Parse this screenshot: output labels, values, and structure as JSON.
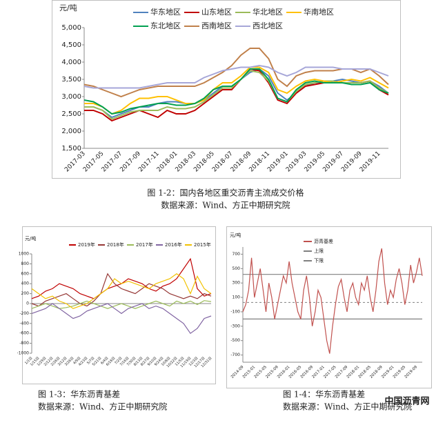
{
  "chart_data": [
    {
      "type": "line",
      "ylabel": "元/吨",
      "categories": [
        "2017-03",
        null,
        "2017-05",
        null,
        "2017-07",
        null,
        "2017-09",
        null,
        "2017-11",
        null,
        "2018-01",
        null,
        "2018-03",
        null,
        "2018-05",
        null,
        "2018-07",
        null,
        "2018-09",
        null,
        "2018-11",
        null,
        "2019-01",
        null,
        "2019-03",
        null,
        "2019-05",
        null,
        "2019-07",
        null,
        "2019-09",
        null,
        "2019-11",
        null
      ],
      "ylim": [
        1500,
        5000
      ],
      "yticks": [
        {
          "value": 1500,
          "label": "1,500"
        },
        {
          "value": 2000,
          "label": "2,000"
        },
        {
          "value": 2500,
          "label": "2,500"
        },
        {
          "value": 3000,
          "label": "3,000"
        },
        {
          "value": 3500,
          "label": "3,500"
        },
        {
          "value": 4000,
          "label": "4,000"
        },
        {
          "value": 4500,
          "label": "4,500"
        },
        {
          "value": 5000,
          "label": "5,000"
        }
      ],
      "series": [
        {
          "name": "华东地区",
          "color": "#4f81bd",
          "values": [
            2700,
            2700,
            2600,
            2400,
            2500,
            2600,
            2700,
            2700,
            2800,
            2850,
            2850,
            2800,
            2800,
            2900,
            3100,
            3300,
            3300,
            3500,
            3700,
            3800,
            3600,
            3100,
            2900,
            3100,
            3300,
            3400,
            3400,
            3450,
            3500,
            3450,
            3400,
            3450,
            3300,
            3100
          ]
        },
        {
          "name": "山东地区",
          "color": "#c00000",
          "values": [
            2600,
            2600,
            2500,
            2300,
            2400,
            2500,
            2600,
            2500,
            2400,
            2600,
            2500,
            2500,
            2600,
            2800,
            3000,
            3200,
            3200,
            3500,
            3800,
            3750,
            3400,
            2900,
            2800,
            3100,
            3300,
            3350,
            3400,
            3450,
            3400,
            3400,
            3400,
            3450,
            3200,
            3050
          ]
        },
        {
          "name": "华北地区",
          "color": "#9bbb59",
          "values": [
            2700,
            2700,
            2600,
            2350,
            2450,
            2550,
            2600,
            2600,
            2600,
            2700,
            2650,
            2650,
            2700,
            2850,
            3050,
            3250,
            3250,
            3500,
            3750,
            3700,
            3450,
            2950,
            2850,
            3150,
            3350,
            3400,
            3450,
            3450,
            3400,
            3400,
            3400,
            3450,
            3250,
            3100
          ]
        },
        {
          "name": "华南地区",
          "color": "#ffc000",
          "values": [
            2800,
            2800,
            2700,
            2500,
            2600,
            2800,
            2950,
            2950,
            3000,
            3000,
            2900,
            2800,
            2800,
            2900,
            3200,
            3400,
            3400,
            3600,
            3850,
            3850,
            3700,
            3200,
            3100,
            3300,
            3450,
            3500,
            3450,
            3400,
            3450,
            3500,
            3450,
            3550,
            3400,
            3250
          ]
        },
        {
          "name": "东北地区",
          "color": "#00a050",
          "values": [
            2900,
            2850,
            2700,
            2500,
            2550,
            2650,
            2700,
            2750,
            2800,
            2800,
            2750,
            2750,
            2800,
            2950,
            3200,
            3300,
            3300,
            3500,
            3800,
            3800,
            3500,
            2950,
            2850,
            3200,
            3400,
            3450,
            3400,
            3400,
            3400,
            3350,
            3350,
            3400,
            3200,
            3100
          ]
        },
        {
          "name": "西南地区",
          "color": "#c0804a",
          "values": [
            3350,
            3300,
            3200,
            3100,
            3000,
            3100,
            3200,
            3250,
            3300,
            3300,
            3300,
            3300,
            3300,
            3400,
            3550,
            3700,
            3900,
            4200,
            4400,
            4400,
            4100,
            3500,
            3300,
            3600,
            3700,
            3750,
            3750,
            3750,
            3800,
            3800,
            3700,
            3800,
            3600,
            3350
          ]
        },
        {
          "name": "西北地区",
          "color": "#a6a6d8",
          "values": [
            3300,
            3250,
            3250,
            3250,
            3250,
            3250,
            3250,
            3300,
            3350,
            3400,
            3400,
            3400,
            3400,
            3550,
            3650,
            3750,
            3800,
            3850,
            3850,
            3900,
            3850,
            3700,
            3600,
            3700,
            3850,
            3850,
            3850,
            3850,
            3800,
            3800,
            3800,
            3800,
            3700,
            3600
          ]
        }
      ],
      "caption": "图 1-2：国内各地区重交沥青主流成交价格",
      "source": "数据来源：Wind、方正中期研究院"
    },
    {
      "type": "line",
      "ylabel": "元/吨",
      "categories": [
        "1/1日",
        "1/15日",
        "1/29日",
        "2/12日",
        "2/26日",
        "3/12日",
        "3/26日",
        "4/9日",
        "4/23日",
        "5/7日",
        "5/21日",
        "6/4日",
        "6/18日",
        "7/2日",
        "7/16日",
        "7/30日",
        "8/13日",
        "8/27日",
        "9/10日",
        "9/24日",
        "10/8日",
        "10/22日",
        "11/5日",
        "11/19日",
        "12/3日",
        "12/17日",
        "12/31日"
      ],
      "ylim": [
        -1000,
        1000
      ],
      "yticks": [
        -1000,
        -800,
        -600,
        -400,
        -200,
        0,
        200,
        400,
        600,
        800,
        1000
      ],
      "series": [
        {
          "name": "2019年",
          "color": "#c00000",
          "values": [
            100,
            150,
            250,
            300,
            400,
            350,
            300,
            200,
            150,
            100,
            200,
            300,
            350,
            400,
            500,
            450,
            400,
            300,
            250,
            350,
            400,
            500,
            700,
            900,
            300,
            150,
            200
          ]
        },
        {
          "name": "2018年",
          "color": "#953735",
          "values": [
            0,
            -50,
            50,
            100,
            150,
            200,
            100,
            0,
            -50,
            50,
            200,
            600,
            400,
            300,
            250,
            200,
            300,
            400,
            350,
            300,
            200,
            150,
            100,
            150,
            100,
            200,
            150
          ]
        },
        {
          "name": "2017年",
          "color": "#9bbb59",
          "values": [
            -100,
            -50,
            0,
            -50,
            -100,
            -80,
            -50,
            0,
            50,
            0,
            -50,
            -100,
            -50,
            0,
            -50,
            -100,
            -50,
            0,
            50,
            0,
            -50,
            50,
            0,
            50,
            -20,
            60,
            40
          ]
        },
        {
          "name": "2016年",
          "color": "#8064a2",
          "values": [
            -200,
            -150,
            -100,
            0,
            -100,
            -200,
            -300,
            -250,
            -150,
            -100,
            -50,
            0,
            -100,
            -200,
            -100,
            -50,
            0,
            -100,
            -50,
            -100,
            -200,
            -300,
            -400,
            -600,
            -500,
            -300,
            -250
          ]
        },
        {
          "name": "2015年",
          "color": "#f2c200",
          "values": [
            300,
            200,
            100,
            150,
            50,
            0,
            -100,
            -50,
            0,
            100,
            200,
            300,
            500,
            400,
            450,
            400,
            350,
            300,
            400,
            450,
            500,
            600,
            500,
            200,
            550,
            300,
            200
          ]
        }
      ],
      "caption": "图 1-3：华东沥青基差",
      "source": "数据来源：Wind、方正中期研究院"
    },
    {
      "type": "line",
      "ylabel": "元/吨",
      "categories": [
        "2014-09",
        null,
        null,
        null,
        "2015-01",
        null,
        null,
        null,
        "2015-05",
        null,
        null,
        null,
        "2015-09",
        null,
        null,
        null,
        "2016-01",
        null,
        null,
        null,
        "2016-05",
        null,
        null,
        null,
        "2016-09",
        null,
        null,
        null,
        "2017-01",
        null,
        null,
        null,
        "2017-05",
        null,
        null,
        null,
        "2017-09",
        null,
        null,
        null,
        "2018-01",
        null,
        null,
        null,
        "2018-05",
        null,
        null,
        null,
        "2018-09",
        null,
        null,
        null,
        "2019-01",
        null,
        null,
        null,
        "2019-05",
        null,
        null,
        null,
        "2019-09",
        null,
        null
      ],
      "ylim": [
        -800,
        800
      ],
      "yticks": [
        -700,
        -500,
        -300,
        -100,
        100,
        300,
        500,
        700
      ],
      "series": [
        {
          "name": "沥青基差",
          "color": "#c0504d",
          "values": [
            -100,
            0,
            200,
            650,
            100,
            300,
            500,
            200,
            -100,
            300,
            100,
            -200,
            0,
            200,
            400,
            300,
            600,
            300,
            100,
            -100,
            -200,
            200,
            400,
            100,
            -300,
            -100,
            200,
            100,
            -200,
            -500,
            -680,
            -300,
            0,
            250,
            350,
            100,
            -100,
            200,
            300,
            100,
            0,
            300,
            200,
            400,
            100,
            -100,
            200,
            600,
            780,
            300,
            0,
            200,
            100,
            350,
            500,
            300,
            0,
            200,
            550,
            300,
            450,
            650,
            400
          ]
        }
      ],
      "lines": [
        {
          "name": "上限",
          "value": 420,
          "color": "#7f7f7f"
        },
        {
          "name": "下限",
          "value": -200,
          "color": "#7f7f7f"
        }
      ],
      "center_line": 30,
      "caption": "图 1-4：华东沥青基差",
      "source": "数据来源：Wind、方正中期研究院"
    }
  ],
  "watermark": "中国沥青网"
}
